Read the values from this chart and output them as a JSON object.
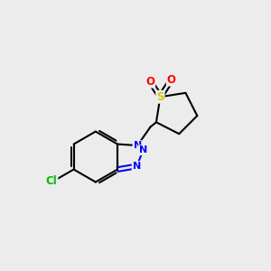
{
  "background_color": "#ececec",
  "bond_color": "#000000",
  "atom_colors": {
    "N": "#0000ff",
    "S": "#cccc00",
    "O": "#ff0000",
    "Cl": "#00bb00",
    "C": "#000000"
  },
  "figsize": [
    3.0,
    3.0
  ],
  "dpi": 100
}
